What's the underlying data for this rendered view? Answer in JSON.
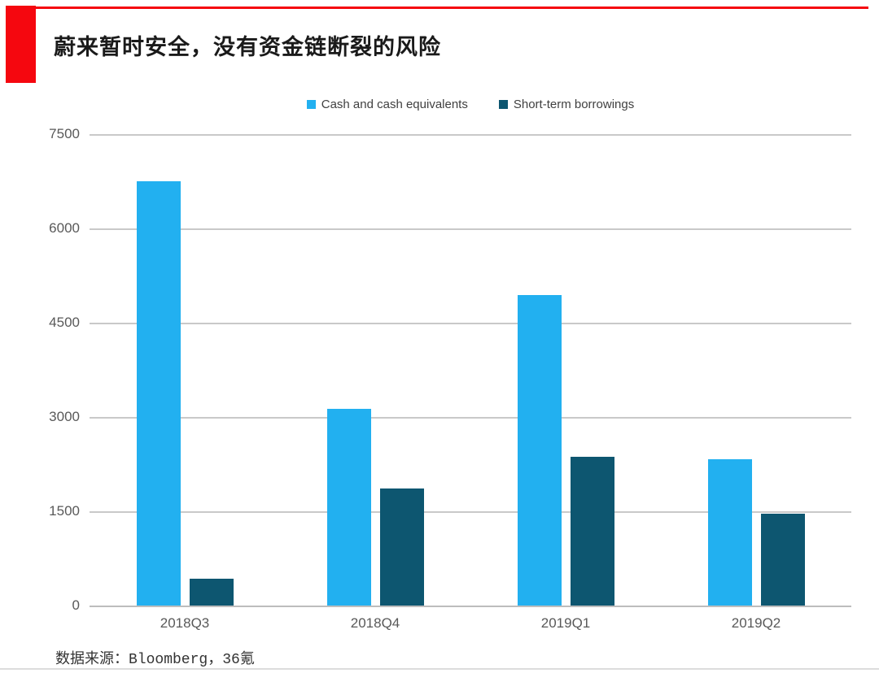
{
  "page": {
    "title": "蔚来暂时安全，没有资金链断裂的风险",
    "source_note": "数据来源：Bloomberg，36氪"
  },
  "colors": {
    "accent_red": "#f5070f",
    "cash_blue": "#22b0f0",
    "borrowings_teal": "#0d5670",
    "gridline": "#c9c9c9",
    "axis_text": "#595959",
    "legend_text": "#404040"
  },
  "chart_data": {
    "type": "bar",
    "title": "蔚来暂时安全，没有资金链断裂的风险",
    "categories": [
      "2018Q3",
      "2018Q4",
      "2019Q1",
      "2019Q2"
    ],
    "series": [
      {
        "name": "Cash and cash equivalents",
        "key": "cash",
        "color": "#22b0f0",
        "values": [
          6750,
          3130,
          4940,
          2330
        ]
      },
      {
        "name": "Short-term borrowings",
        "key": "short-term-borrowings",
        "color": "#0d5670",
        "values": [
          430,
          1860,
          2370,
          1460
        ]
      }
    ],
    "xlabel": "",
    "ylabel": "",
    "ylim": [
      0,
      7500
    ],
    "yticks": [
      0,
      1500,
      3000,
      4500,
      6000,
      7500
    ],
    "grid": true,
    "legend_position": "top-center",
    "source": "数据来源：Bloomberg，36氪"
  }
}
